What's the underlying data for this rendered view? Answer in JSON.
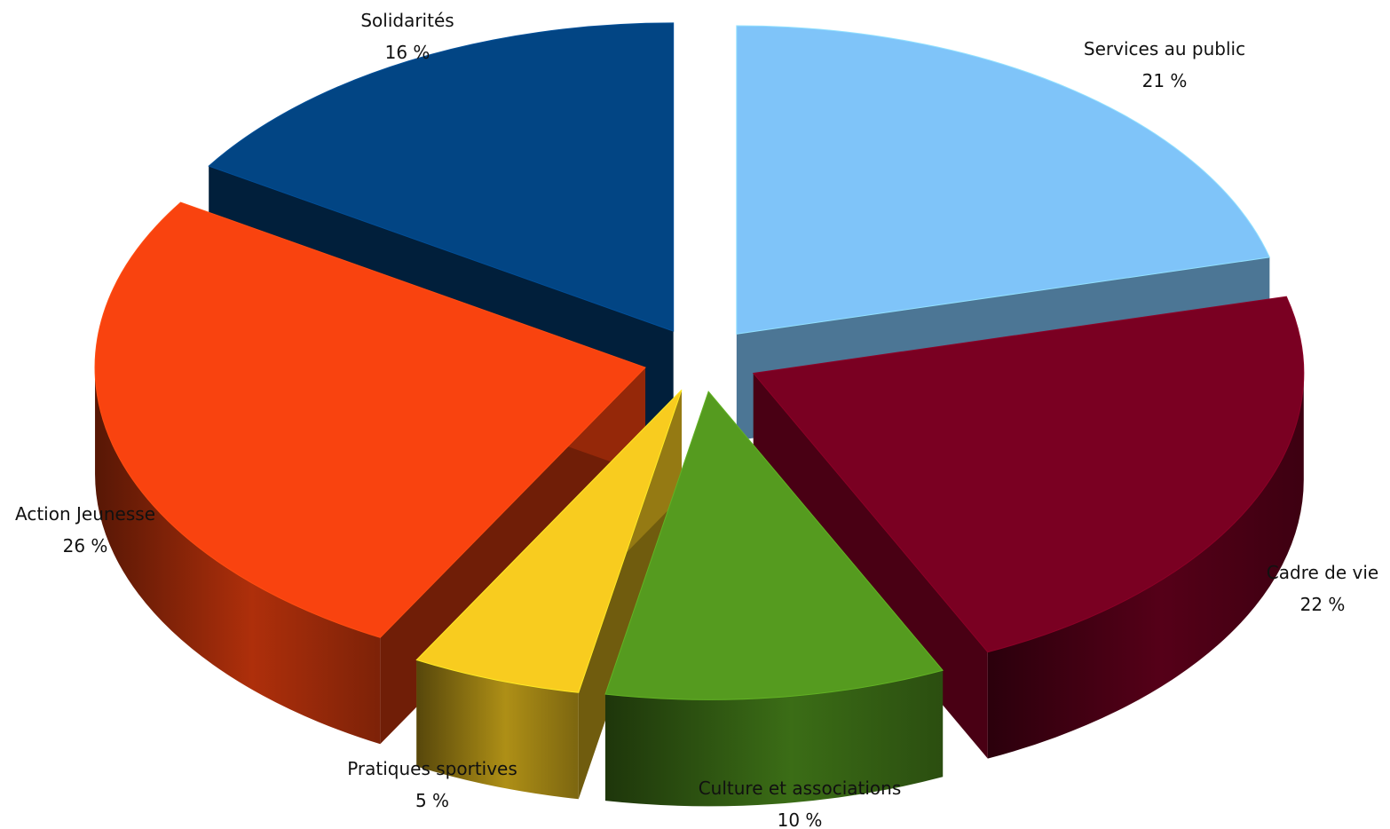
{
  "chart_data": {
    "type": "pie",
    "style": "3d-exploded",
    "title": "",
    "slices": [
      {
        "label": "Services au public",
        "value": 21,
        "value_label": "21 %",
        "color": "#7FC4F9"
      },
      {
        "label": "Cadre de vie",
        "value": 22,
        "value_label": "22 %",
        "color": "#7A0022"
      },
      {
        "label": "Culture et associations",
        "value": 10,
        "value_label": "10 %",
        "color": "#559B1F"
      },
      {
        "label": "Pratiques sportives",
        "value": 5,
        "value_label": "5 %",
        "color": "#F8CC1F"
      },
      {
        "label": "Action Jeunesse",
        "value": 26,
        "value_label": "26 %",
        "color": "#F9430F"
      },
      {
        "label": "Solidarités",
        "value": 16,
        "value_label": "16 %",
        "color": "#024584"
      }
    ]
  }
}
